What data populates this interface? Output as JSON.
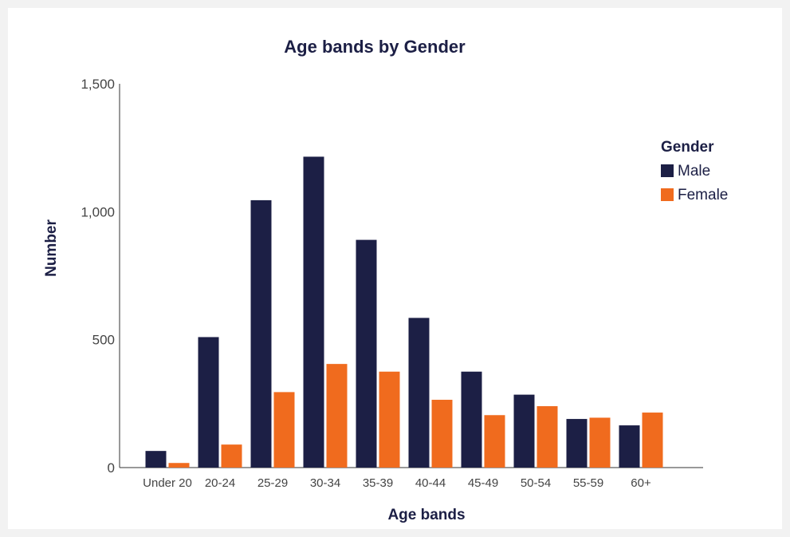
{
  "chart_data": {
    "type": "bar",
    "title": "Age bands by Gender",
    "xlabel": "Age bands",
    "ylabel": "Number",
    "ylim": [
      0,
      1500
    ],
    "yticks": [
      0,
      500,
      1000,
      1500
    ],
    "ytick_labels": [
      "0",
      "500",
      "1,000",
      "1,500"
    ],
    "categories": [
      "Under 20",
      "20-24",
      "25-29",
      "30-34",
      "35-39",
      "40-44",
      "45-49",
      "50-54",
      "55-59",
      "60+"
    ],
    "series": [
      {
        "name": "Male",
        "color": "#1c1f45",
        "values": [
          65,
          510,
          1045,
          1215,
          890,
          585,
          375,
          285,
          190,
          165
        ]
      },
      {
        "name": "Female",
        "color": "#f06b1e",
        "values": [
          18,
          90,
          295,
          405,
          375,
          265,
          205,
          240,
          195,
          215
        ]
      }
    ],
    "legend": {
      "title": "Gender",
      "placement": "right"
    },
    "grid": false
  }
}
